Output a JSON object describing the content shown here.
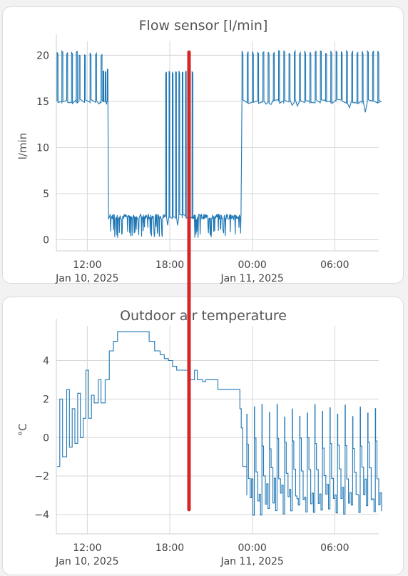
{
  "colors": {
    "series": "#1f77b4",
    "marker": "#d62728",
    "grid": "#d7d7d7"
  },
  "chart_data": [
    {
      "id": "flow",
      "type": "line",
      "title": "Flow sensor [l/min]",
      "xlabel": "",
      "ylabel": "l/min",
      "xlim": [
        9.75,
        33.2
      ],
      "ylim": [
        -1.2,
        21.5
      ],
      "yticks": [
        0,
        5,
        10,
        15,
        20
      ],
      "xticks": [
        {
          "x": 12,
          "label": "12:00",
          "sub": "Jan 10, 2025"
        },
        {
          "x": 18,
          "label": "18:00",
          "sub": ""
        },
        {
          "x": 24,
          "label": "00:00",
          "sub": "Jan 11, 2025"
        },
        {
          "x": 30,
          "label": "06:00",
          "sub": ""
        }
      ],
      "series": [
        {
          "segments": [
            {
              "type": "pulse",
              "x0": 9.8,
              "x1": 11.4,
              "period": 0.35,
              "base": 15,
              "peak": 20.3,
              "width": 0.07
            },
            {
              "type": "pulse",
              "x0": 11.4,
              "x1": 13.15,
              "period": 0.4,
              "base": 15,
              "peak": 20.1,
              "width": 0.07
            },
            {
              "type": "pulse",
              "x0": 13.15,
              "x1": 13.5,
              "period": 0.15,
              "base": 15,
              "peak": 18.3,
              "width": 0.05
            },
            {
              "type": "noise",
              "x0": 13.55,
              "x1": 17.7,
              "base": 2.5,
              "low": 0.2,
              "amp": 0.6
            },
            {
              "type": "pulse",
              "x0": 17.7,
              "x1": 19.65,
              "period": 0.24,
              "base": 2.5,
              "peak": 18.2,
              "width": 0.06
            },
            {
              "type": "noise",
              "x0": 19.7,
              "x1": 23.2,
              "base": 2.5,
              "low": 0.2,
              "amp": 0.6
            },
            {
              "type": "pulse",
              "x0": 23.25,
              "x1": 33.15,
              "period": 0.38,
              "base": 15,
              "peak": 20.3,
              "width": 0.07
            }
          ]
        }
      ]
    },
    {
      "id": "temp",
      "type": "line",
      "title": "Outdoor air temperature",
      "xlabel": "",
      "ylabel": "°C",
      "xlim": [
        9.75,
        33.2
      ],
      "ylim": [
        -5.0,
        5.8
      ],
      "yticks": [
        -4,
        -2,
        0,
        2,
        4
      ],
      "xticks": [
        {
          "x": 12,
          "label": "12:00",
          "sub": "Jan 10, 2025"
        },
        {
          "x": 18,
          "label": "18:00",
          "sub": ""
        },
        {
          "x": 24,
          "label": "00:00",
          "sub": "Jan 11, 2025"
        },
        {
          "x": 30,
          "label": "06:00",
          "sub": ""
        }
      ],
      "series": [
        {
          "points": [
            [
              9.8,
              -1.5
            ],
            [
              10.0,
              2.0
            ],
            [
              10.2,
              -1.0
            ],
            [
              10.5,
              2.5
            ],
            [
              10.7,
              -0.5
            ],
            [
              10.9,
              1.5
            ],
            [
              11.1,
              -0.3
            ],
            [
              11.3,
              2.3
            ],
            [
              11.5,
              0.0
            ],
            [
              11.7,
              1.0
            ],
            [
              11.9,
              3.5
            ],
            [
              12.1,
              1.0
            ],
            [
              12.3,
              2.2
            ],
            [
              12.5,
              1.8
            ],
            [
              12.8,
              3.0
            ],
            [
              13.0,
              1.8
            ],
            [
              13.3,
              3.0
            ],
            [
              13.6,
              4.5
            ],
            [
              13.9,
              5.0
            ],
            [
              14.2,
              5.5
            ],
            [
              15.0,
              5.5
            ],
            [
              16.2,
              5.5
            ],
            [
              16.5,
              5.0
            ],
            [
              16.9,
              4.5
            ],
            [
              17.3,
              4.3
            ],
            [
              17.6,
              4.1
            ],
            [
              17.9,
              4.0
            ],
            [
              18.2,
              3.7
            ],
            [
              18.5,
              3.5
            ],
            [
              19.2,
              3.5
            ],
            [
              19.5,
              3.0
            ],
            [
              19.8,
              3.5
            ],
            [
              20.0,
              3.0
            ],
            [
              20.4,
              2.9
            ],
            [
              20.6,
              3.0
            ],
            [
              21.2,
              3.0
            ],
            [
              21.5,
              2.5
            ],
            [
              22.5,
              2.5
            ],
            [
              22.9,
              2.5
            ],
            [
              23.1,
              1.5
            ],
            [
              23.2,
              0.5
            ],
            [
              23.3,
              -1.5
            ],
            [
              23.6,
              -3.0
            ]
          ],
          "segments": [
            {
              "type": "saw",
              "x0": 23.6,
              "x1": 33.15,
              "period": 0.55,
              "peak": 1.8,
              "low": -3.5,
              "noise": 0.7
            }
          ]
        }
      ]
    }
  ]
}
